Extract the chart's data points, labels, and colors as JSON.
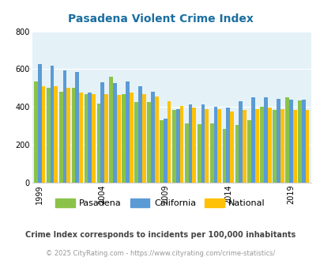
{
  "title": "Pasadena Violent Crime Index",
  "years": [
    1999,
    2000,
    2001,
    2002,
    2003,
    2004,
    2005,
    2006,
    2007,
    2008,
    2009,
    2010,
    2011,
    2012,
    2013,
    2014,
    2015,
    2016,
    2017,
    2018,
    2019,
    2020
  ],
  "pasadena": [
    535,
    500,
    480,
    500,
    470,
    420,
    560,
    470,
    425,
    425,
    330,
    385,
    315,
    310,
    315,
    285,
    305,
    330,
    400,
    385,
    450,
    435
  ],
  "california": [
    625,
    620,
    595,
    585,
    475,
    530,
    525,
    535,
    510,
    480,
    340,
    390,
    415,
    415,
    400,
    395,
    430,
    450,
    450,
    445,
    440,
    440
  ],
  "national": [
    510,
    510,
    500,
    475,
    470,
    470,
    465,
    475,
    470,
    455,
    430,
    405,
    395,
    390,
    390,
    375,
    385,
    390,
    395,
    390,
    385,
    385
  ],
  "bar_colors": {
    "pasadena": "#8bc34a",
    "california": "#5b9bd5",
    "national": "#ffc107"
  },
  "bg_color": "#e4f2f7",
  "ylim": [
    0,
    800
  ],
  "yticks": [
    0,
    200,
    400,
    600,
    800
  ],
  "xlabel_years": [
    1999,
    2004,
    2009,
    2014,
    2019
  ],
  "footnote1": "Crime Index corresponds to incidents per 100,000 inhabitants",
  "footnote2": "© 2025 CityRating.com - https://www.cityrating.com/crime-statistics/",
  "title_color": "#1a6fa0",
  "footnote1_color": "#444444",
  "footnote2_color": "#999999",
  "grid_color": "#ffffff"
}
